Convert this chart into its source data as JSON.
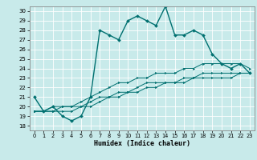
{
  "xlabel": "Humidex (Indice chaleur)",
  "ylabel": "",
  "background_color": "#c8eaea",
  "grid_color": "#ffffff",
  "line_color": "#007070",
  "xlim": [
    -0.5,
    23.5
  ],
  "ylim": [
    17.5,
    30.5
  ],
  "xticks": [
    0,
    1,
    2,
    3,
    4,
    5,
    6,
    7,
    8,
    9,
    10,
    11,
    12,
    13,
    14,
    15,
    16,
    17,
    18,
    19,
    20,
    21,
    22,
    23
  ],
  "yticks": [
    18,
    19,
    20,
    21,
    22,
    23,
    24,
    25,
    26,
    27,
    28,
    29,
    30
  ],
  "series": [
    [
      21.0,
      19.5,
      20.0,
      19.0,
      18.5,
      19.0,
      21.0,
      28.0,
      27.5,
      27.0,
      29.0,
      29.5,
      29.0,
      28.5,
      30.5,
      27.5,
      27.5,
      28.0,
      27.5,
      25.5,
      24.5,
      24.0,
      24.5,
      23.5
    ],
    [
      19.5,
      19.5,
      20.0,
      20.0,
      20.0,
      20.5,
      21.0,
      21.5,
      22.0,
      22.5,
      22.5,
      23.0,
      23.0,
      23.5,
      23.5,
      23.5,
      24.0,
      24.0,
      24.5,
      24.5,
      24.5,
      24.5,
      24.5,
      24.0
    ],
    [
      19.5,
      19.5,
      19.5,
      20.0,
      20.0,
      20.0,
      20.5,
      21.0,
      21.0,
      21.5,
      21.5,
      22.0,
      22.5,
      22.5,
      22.5,
      22.5,
      23.0,
      23.0,
      23.5,
      23.5,
      23.5,
      23.5,
      23.5,
      23.5
    ],
    [
      19.5,
      19.5,
      19.5,
      19.5,
      19.5,
      20.0,
      20.0,
      20.5,
      21.0,
      21.0,
      21.5,
      21.5,
      22.0,
      22.0,
      22.5,
      22.5,
      22.5,
      23.0,
      23.0,
      23.0,
      23.0,
      23.0,
      23.5,
      23.5
    ]
  ],
  "markers": [
    "D",
    ">",
    ">",
    ">"
  ],
  "linewidths": [
    1.0,
    0.7,
    0.7,
    0.7
  ],
  "markersizes": [
    2.0,
    1.8,
    1.8,
    1.8
  ]
}
